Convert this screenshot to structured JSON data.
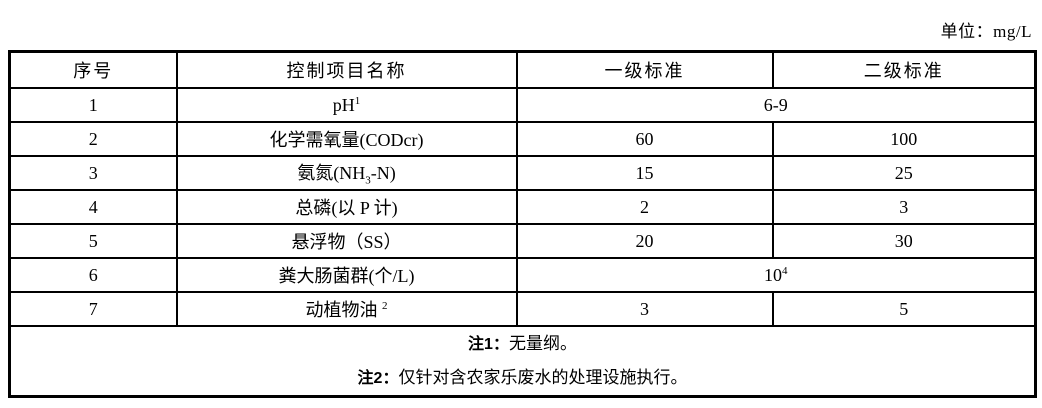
{
  "unit_label": "单位：mg/L",
  "table": {
    "headers": [
      {
        "label": "序号"
      },
      {
        "label": "控制项目名称"
      },
      {
        "label": "一级标准"
      },
      {
        "label": "二级标准"
      }
    ],
    "rows": [
      {
        "no": "1",
        "name": [
          {
            "t": "pH"
          },
          {
            "t": "1",
            "style": "sup"
          }
        ],
        "merged": [
          {
            "t": "6-9"
          }
        ]
      },
      {
        "no": "2",
        "name": [
          {
            "t": "化学需氧量(CODcr)"
          }
        ],
        "level1": "60",
        "level2": "100"
      },
      {
        "no": "3",
        "name": [
          {
            "t": "氨氮(NH"
          },
          {
            "t": "3",
            "style": "sub"
          },
          {
            "t": "-N)"
          }
        ],
        "level1": "15",
        "level2": "25"
      },
      {
        "no": "4",
        "name": [
          {
            "t": "总磷(以 P 计)"
          }
        ],
        "level1": "2",
        "level2": "3"
      },
      {
        "no": "5",
        "name": [
          {
            "t": "悬浮物（SS）"
          }
        ],
        "level1": "20",
        "level2": "30"
      },
      {
        "no": "6",
        "name": [
          {
            "t": "粪大肠菌群(个/L)"
          }
        ],
        "merged": [
          {
            "t": "10"
          },
          {
            "t": "4",
            "style": "sup"
          }
        ]
      },
      {
        "no": "7",
        "name": [
          {
            "t": "动植物油 "
          },
          {
            "t": "2",
            "style": "sup"
          }
        ],
        "level1": "3",
        "level2": "5"
      }
    ]
  },
  "notes": [
    {
      "label": "注1：",
      "text": "无量纲。"
    },
    {
      "label": "注2：",
      "text": "仅针对含农家乐废水的处理设施执行。"
    }
  ],
  "colors": {
    "border": "#000000",
    "text": "#000000",
    "background": "#ffffff"
  }
}
